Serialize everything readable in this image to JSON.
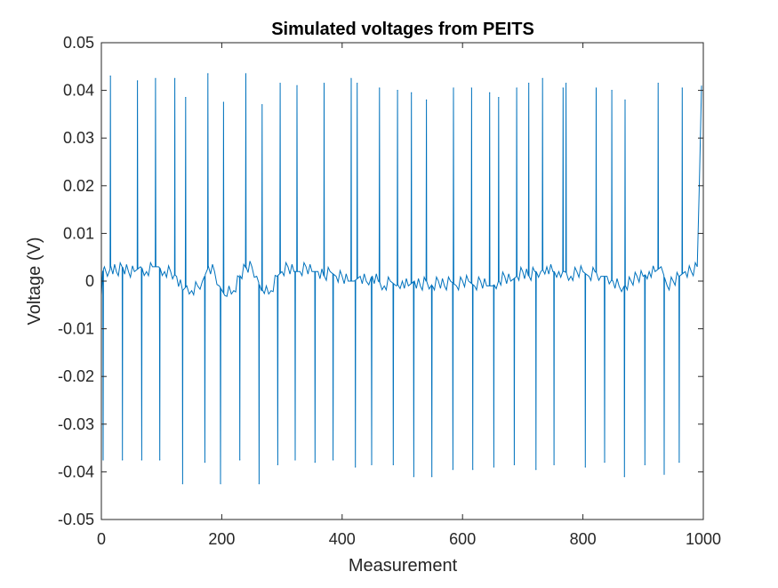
{
  "chart_data": {
    "type": "line",
    "title": "Simulated voltages from PEITS",
    "xlabel": "Measurement",
    "ylabel": "Voltage (V)",
    "xlim": [
      0,
      1000
    ],
    "ylim": [
      -0.05,
      0.05
    ],
    "xticks": [
      0,
      200,
      400,
      600,
      800,
      1000
    ],
    "xtick_labels": [
      "0",
      "200",
      "400",
      "600",
      "800",
      "1000"
    ],
    "yticks": [
      -0.05,
      -0.04,
      -0.03,
      -0.02,
      -0.01,
      0,
      0.01,
      0.02,
      0.03,
      0.04,
      0.05
    ],
    "ytick_labels": [
      "-0.05",
      "-0.04",
      "-0.03",
      "-0.02",
      "-0.01",
      "0",
      "0.01",
      "0.02",
      "0.03",
      "0.04",
      "0.05"
    ],
    "grid": false,
    "legend": "none",
    "series": [
      {
        "color": "#0072BD",
        "baseline": [
          [
            0,
            -0.003
          ],
          [
            2,
            0.002
          ],
          [
            5,
            0.003
          ],
          [
            10,
            0.001
          ],
          [
            16,
            0.003
          ],
          [
            25,
            0.002
          ],
          [
            35,
            0.003
          ],
          [
            45,
            0.002
          ],
          [
            55,
            0.002
          ],
          [
            65,
            0.003
          ],
          [
            75,
            0.002
          ],
          [
            85,
            0.003
          ],
          [
            95,
            0.003
          ],
          [
            105,
            0.002
          ],
          [
            115,
            0.002
          ],
          [
            125,
            0.001
          ],
          [
            135,
            -0.002
          ],
          [
            142,
            -0.001
          ],
          [
            150,
            -0.002
          ],
          [
            160,
            -0.001
          ],
          [
            168,
            0.0
          ],
          [
            178,
            0.003
          ],
          [
            188,
            0.002
          ],
          [
            196,
            -0.001
          ],
          [
            205,
            -0.003
          ],
          [
            212,
            -0.001
          ],
          [
            220,
            -0.002
          ],
          [
            230,
            0.001
          ],
          [
            240,
            0.003
          ],
          [
            250,
            0.003
          ],
          [
            258,
            0.001
          ],
          [
            266,
            -0.002
          ],
          [
            274,
            -0.001
          ],
          [
            282,
            -0.002
          ],
          [
            292,
            0.001
          ],
          [
            300,
            0.002
          ],
          [
            310,
            0.003
          ],
          [
            320,
            0.002
          ],
          [
            330,
            0.002
          ],
          [
            340,
            0.003
          ],
          [
            350,
            0.002
          ],
          [
            360,
            0.002
          ],
          [
            370,
            0.001
          ],
          [
            380,
            0.002
          ],
          [
            390,
            0.001
          ],
          [
            400,
            0.001
          ],
          [
            410,
            0.0
          ],
          [
            420,
            0.0
          ],
          [
            430,
            0.001
          ],
          [
            440,
            0.0
          ],
          [
            450,
            0.001
          ],
          [
            460,
            0.0
          ],
          [
            470,
            -0.001
          ],
          [
            480,
            0.0
          ],
          [
            490,
            -0.001
          ],
          [
            500,
            0.0
          ],
          [
            510,
            -0.001
          ],
          [
            520,
            0.0
          ],
          [
            530,
            -0.001
          ],
          [
            540,
            0.0
          ],
          [
            550,
            -0.001
          ],
          [
            560,
            0.0
          ],
          [
            570,
            -0.001
          ],
          [
            580,
            0.0
          ],
          [
            590,
            -0.001
          ],
          [
            600,
            0.0
          ],
          [
            610,
            0.0
          ],
          [
            620,
            -0.001
          ],
          [
            630,
            0.0
          ],
          [
            640,
            -0.001
          ],
          [
            650,
            -0.001
          ],
          [
            660,
            0.0
          ],
          [
            670,
            0.001
          ],
          [
            680,
            0.0
          ],
          [
            690,
            0.001
          ],
          [
            700,
            0.002
          ],
          [
            710,
            0.001
          ],
          [
            720,
            0.002
          ],
          [
            730,
            0.002
          ],
          [
            740,
            0.003
          ],
          [
            750,
            0.002
          ],
          [
            760,
            0.002
          ],
          [
            770,
            0.002
          ],
          [
            780,
            0.001
          ],
          [
            790,
            0.002
          ],
          [
            800,
            0.002
          ],
          [
            810,
            0.001
          ],
          [
            820,
            0.002
          ],
          [
            830,
            0.001
          ],
          [
            840,
            0.001
          ],
          [
            850,
            0.0
          ],
          [
            860,
            -0.001
          ],
          [
            870,
            -0.001
          ],
          [
            880,
            0.0
          ],
          [
            890,
            0.001
          ],
          [
            900,
            0.001
          ],
          [
            910,
            0.002
          ],
          [
            920,
            0.002
          ],
          [
            930,
            0.003
          ],
          [
            940,
            -0.001
          ],
          [
            950,
            0.0
          ],
          [
            960,
            0.001
          ],
          [
            970,
            0.002
          ],
          [
            980,
            0.002
          ],
          [
            990,
            0.003
          ],
          [
            997,
            0.041
          ]
        ],
        "positive_spikes": [
          [
            15,
            0.043
          ],
          [
            60,
            0.042
          ],
          [
            90,
            0.0425
          ],
          [
            122,
            0.0425
          ],
          [
            140,
            0.0385
          ],
          [
            177,
            0.0435
          ],
          [
            203,
            0.0375
          ],
          [
            240,
            0.0435
          ],
          [
            267,
            0.037
          ],
          [
            297,
            0.0415
          ],
          [
            325,
            0.041
          ],
          [
            370,
            0.0415
          ],
          [
            415,
            0.0425
          ],
          [
            425,
            0.0415
          ],
          [
            462,
            0.0405
          ],
          [
            492,
            0.04
          ],
          [
            515,
            0.0395
          ],
          [
            540,
            0.038
          ],
          [
            585,
            0.0405
          ],
          [
            615,
            0.0405
          ],
          [
            645,
            0.0395
          ],
          [
            660,
            0.0385
          ],
          [
            690,
            0.0405
          ],
          [
            710,
            0.0415
          ],
          [
            733,
            0.0425
          ],
          [
            767,
            0.0405
          ],
          [
            772,
            0.0415
          ],
          [
            822,
            0.0405
          ],
          [
            848,
            0.04
          ],
          [
            870,
            0.038
          ],
          [
            925,
            0.0415
          ],
          [
            965,
            0.0405
          ]
        ],
        "negative_spikes": [
          [
            3,
            -0.0375
          ],
          [
            35,
            -0.0375
          ],
          [
            67,
            -0.0375
          ],
          [
            97,
            -0.0375
          ],
          [
            135,
            -0.0425
          ],
          [
            172,
            -0.038
          ],
          [
            198,
            -0.0425
          ],
          [
            230,
            -0.0375
          ],
          [
            262,
            -0.0425
          ],
          [
            293,
            -0.0385
          ],
          [
            322,
            -0.0375
          ],
          [
            355,
            -0.038
          ],
          [
            385,
            -0.0375
          ],
          [
            422,
            -0.039
          ],
          [
            449,
            -0.0385
          ],
          [
            485,
            -0.0385
          ],
          [
            519,
            -0.041
          ],
          [
            549,
            -0.041
          ],
          [
            584,
            -0.0395
          ],
          [
            617,
            -0.0395
          ],
          [
            652,
            -0.039
          ],
          [
            686,
            -0.0385
          ],
          [
            722,
            -0.0395
          ],
          [
            752,
            -0.0385
          ],
          [
            804,
            -0.039
          ],
          [
            836,
            -0.038
          ],
          [
            869,
            -0.041
          ],
          [
            903,
            -0.0385
          ],
          [
            935,
            -0.0405
          ],
          [
            960,
            -0.038
          ]
        ]
      }
    ]
  }
}
